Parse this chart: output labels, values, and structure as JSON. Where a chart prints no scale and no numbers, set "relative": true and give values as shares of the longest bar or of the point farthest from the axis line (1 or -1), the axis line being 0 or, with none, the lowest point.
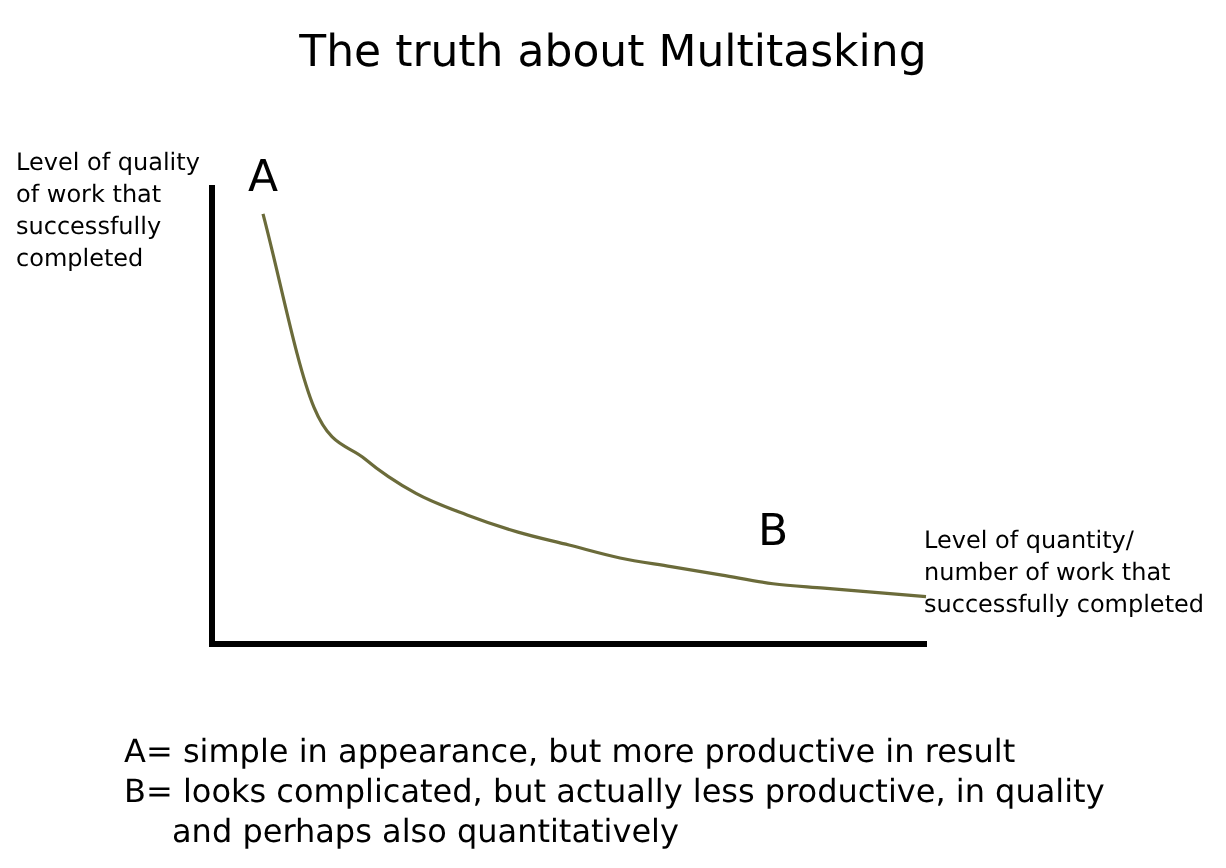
{
  "chart_data": {
    "type": "line",
    "title": "The truth about Multitasking",
    "ylabel": "Level of quality of work that successfully completed",
    "xlabel": "Level of quantity/ number  of work that successfully completed",
    "relative": true,
    "marker": "none",
    "color": "#6b6b3a",
    "categories": [
      null,
      null,
      null,
      null,
      null,
      null,
      null,
      null,
      null,
      null,
      null,
      null,
      null,
      null,
      null
    ],
    "values": [
      null,
      1.0,
      0.55,
      0.43,
      0.35,
      0.3,
      0.26,
      0.23,
      0.2,
      0.18,
      0.16,
      0.14,
      0.13,
      0.12,
      0.11
    ],
    "annotations": [
      "A",
      "B",
      "A= simple in appearance, but more productive in result",
      "B= looks complicated, but actually  less productive,  in quality and perhaps also quantitatively"
    ]
  }
}
